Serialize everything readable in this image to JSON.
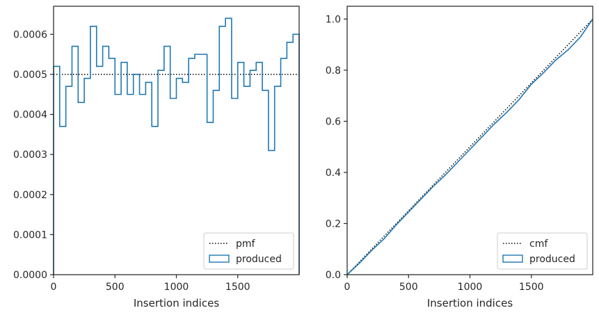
{
  "chart_data": [
    {
      "type": "step",
      "xlabel": "Insertion indices",
      "ylabel": "",
      "xlim": [
        0,
        2000
      ],
      "ylim": [
        0,
        0.00067
      ],
      "xticks": [
        0,
        500,
        1000,
        1500
      ],
      "xtick_labels": [
        "0",
        "500",
        "1000",
        "1500"
      ],
      "yticks": [
        0,
        0.0001,
        0.0002,
        0.0003,
        0.0004,
        0.0005,
        0.0006
      ],
      "ytick_labels": [
        "0.0000",
        "0.0001",
        "0.0002",
        "0.0003",
        "0.0004",
        "0.0005",
        "0.0006"
      ],
      "legend_position": "lower-right",
      "series": [
        {
          "name": "pmf",
          "style": "dotted",
          "color": "#000000",
          "x": [
            0,
            2000
          ],
          "values": [
            0.0005,
            0.0005
          ]
        },
        {
          "name": "produced",
          "style": "step",
          "color": "#1f77b4",
          "bin_edges": [
            0,
            50,
            100,
            150,
            200,
            250,
            300,
            350,
            400,
            450,
            500,
            550,
            600,
            650,
            700,
            750,
            800,
            850,
            900,
            950,
            1000,
            1050,
            1100,
            1150,
            1200,
            1250,
            1300,
            1350,
            1400,
            1450,
            1500,
            1550,
            1600,
            1650,
            1700,
            1750,
            1800,
            1850,
            1900,
            1950,
            2000
          ],
          "values": [
            0.00052,
            0.00037,
            0.00047,
            0.00057,
            0.00043,
            0.00049,
            0.00062,
            0.00052,
            0.00057,
            0.00054,
            0.00045,
            0.00053,
            0.00045,
            0.0005,
            0.00045,
            0.00048,
            0.00037,
            0.00051,
            0.00057,
            0.00044,
            0.00049,
            0.00048,
            0.00054,
            0.00055,
            0.00055,
            0.00038,
            0.00046,
            0.00062,
            0.00064,
            0.00044,
            0.00053,
            0.00047,
            0.00051,
            0.00053,
            0.00046,
            0.00031,
            0.00047,
            0.00054,
            0.00058,
            0.0006
          ]
        }
      ]
    },
    {
      "type": "line",
      "xlabel": "Insertion indices",
      "ylabel": "",
      "xlim": [
        0,
        2000
      ],
      "ylim": [
        0,
        1.05
      ],
      "xticks": [
        0,
        500,
        1000,
        1500
      ],
      "xtick_labels": [
        "0",
        "500",
        "1000",
        "1500"
      ],
      "yticks": [
        0,
        0.2,
        0.4,
        0.6,
        0.8,
        1.0
      ],
      "ytick_labels": [
        "0.0",
        "0.2",
        "0.4",
        "0.6",
        "0.8",
        "1.0"
      ],
      "legend_position": "lower-right",
      "series": [
        {
          "name": "cmf",
          "style": "dotted",
          "color": "#000000",
          "x": [
            0,
            2000
          ],
          "values": [
            0,
            1.0
          ]
        },
        {
          "name": "produced",
          "style": "line",
          "color": "#1f77b4",
          "x": [
            0,
            100,
            200,
            300,
            400,
            500,
            600,
            700,
            800,
            900,
            1000,
            1100,
            1200,
            1300,
            1400,
            1500,
            1600,
            1700,
            1800,
            1900,
            2000
          ],
          "values": [
            0,
            0.045,
            0.095,
            0.14,
            0.195,
            0.245,
            0.295,
            0.345,
            0.39,
            0.44,
            0.49,
            0.54,
            0.59,
            0.635,
            0.685,
            0.745,
            0.79,
            0.84,
            0.88,
            0.93,
            1.0
          ]
        }
      ]
    }
  ]
}
